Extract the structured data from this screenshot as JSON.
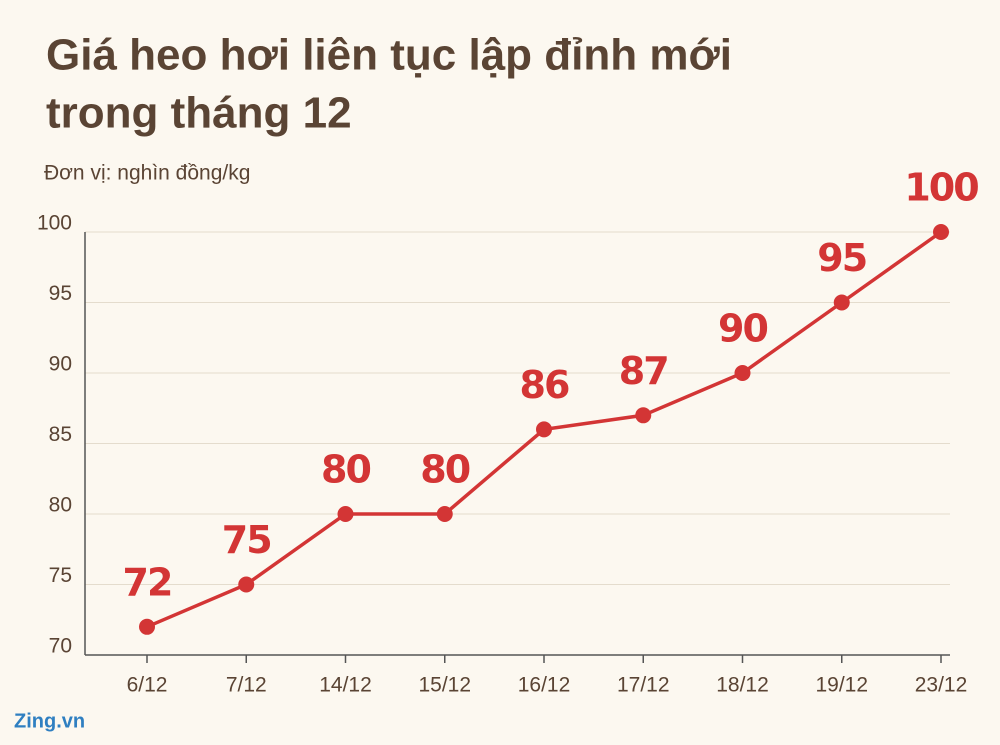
{
  "chart_data": {
    "type": "line",
    "title": [
      "Giá heo hơi liên tục lập đỉnh mới",
      "trong tháng 12"
    ],
    "subtitle": "Đơn vị: nghìn đồng/kg",
    "categories": [
      "6/12",
      "7/12",
      "14/12",
      "15/12",
      "16/12",
      "17/12",
      "18/12",
      "19/12",
      "23/12"
    ],
    "values": [
      72,
      75,
      80,
      80,
      86,
      87,
      90,
      95,
      100
    ],
    "color": "#d33535",
    "ylim": [
      70,
      100
    ],
    "yticks": [
      70,
      75,
      80,
      85,
      90,
      95,
      100
    ],
    "grid": true,
    "watermark": "Zing.vn"
  }
}
